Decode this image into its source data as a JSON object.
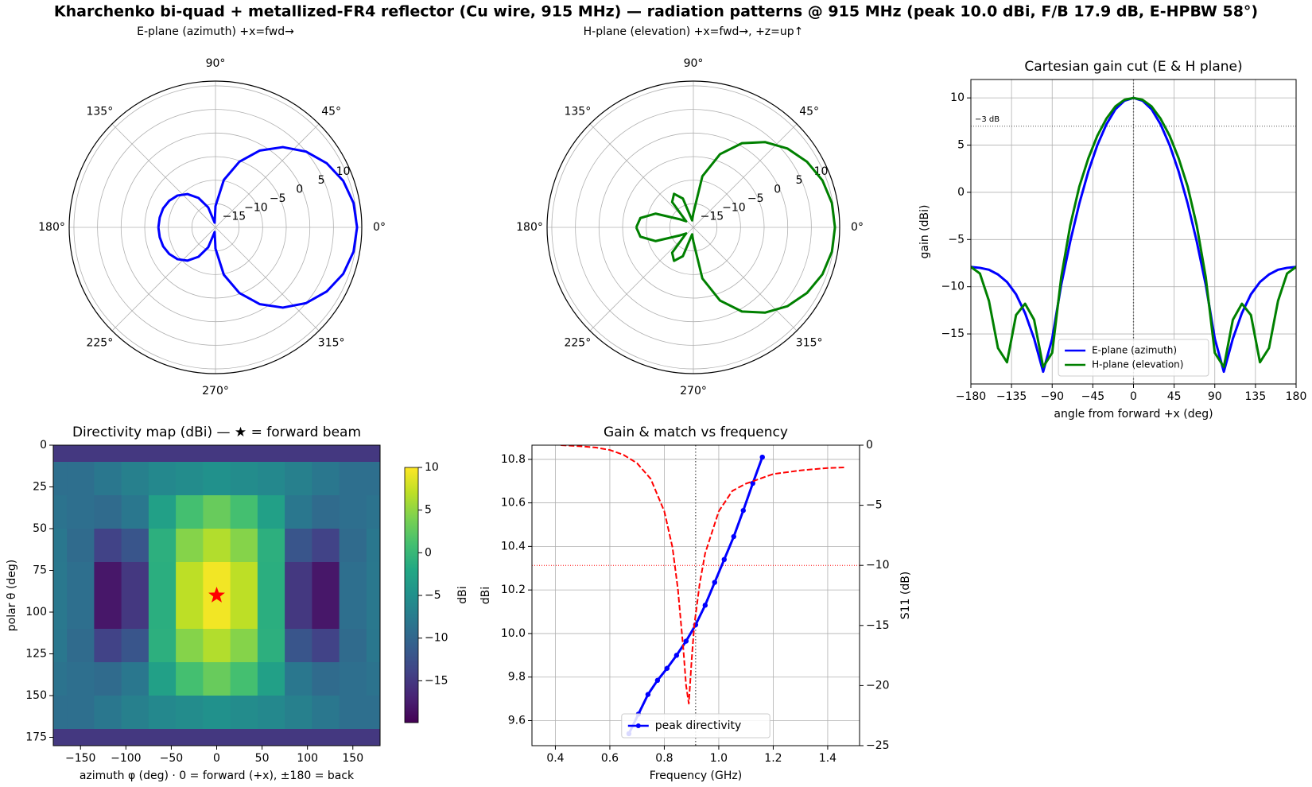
{
  "title": "Kharchenko bi-quad + metallized-FR4 reflector (Cu wire, 915 MHz)  —  radiation patterns @ 915 MHz  (peak 10.0 dBi, F/B 17.9 dB, E-HPBW 58°)",
  "chart_data": [
    {
      "type": "polar",
      "title": "E-plane (azimuth)  +x=fwd→",
      "theta": [
        -180,
        -170,
        -160,
        -150,
        -140,
        -130,
        -120,
        -110,
        -100,
        -90,
        -80,
        -70,
        -60,
        -50,
        -40,
        -30,
        -20,
        -10,
        0,
        10,
        20,
        30,
        40,
        50,
        60,
        70,
        80,
        90,
        100,
        110,
        120,
        130,
        140,
        150,
        160,
        170,
        180
      ],
      "rlim": [
        -20,
        11
      ],
      "rticks": [
        {
          "value": -15,
          "label": "−15"
        },
        {
          "value": -10,
          "label": "−10"
        },
        {
          "value": -5,
          "label": "−5"
        },
        0,
        5,
        10
      ],
      "thetaticks": [
        {
          "value": 0,
          "label": "0°"
        },
        {
          "value": 45,
          "label": "45°"
        },
        {
          "value": 90,
          "label": "90°"
        },
        {
          "value": 135,
          "label": "135°"
        },
        {
          "value": 180,
          "label": "180°"
        },
        {
          "value": 225,
          "label": "225°"
        },
        {
          "value": 270,
          "label": "270°"
        },
        {
          "value": 315,
          "label": "315°"
        }
      ],
      "series": [
        {
          "color": "#0000ff",
          "values": [
            -7.9,
            -8.0,
            -8.2,
            -8.7,
            -9.5,
            -10.8,
            -12.8,
            -15.5,
            -19,
            -15.5,
            -9.8,
            -5.2,
            -1.2,
            2.2,
            5.0,
            7.2,
            8.8,
            9.7,
            10,
            9.7,
            8.8,
            7.2,
            5.0,
            2.2,
            -1.2,
            -5.2,
            -9.8,
            -15.5,
            -19,
            -15.5,
            -12.8,
            -10.8,
            -9.5,
            -8.7,
            -8.2,
            -8.0,
            -7.9
          ]
        }
      ]
    },
    {
      "type": "polar",
      "title": "H-plane (elevation)  +x=fwd→, +z=up↑",
      "theta": [
        -180,
        -170,
        -160,
        -150,
        -140,
        -130,
        -120,
        -110,
        -100,
        -90,
        -80,
        -70,
        -60,
        -50,
        -40,
        -30,
        -20,
        -10,
        0,
        10,
        20,
        30,
        40,
        50,
        60,
        70,
        80,
        90,
        100,
        110,
        120,
        130,
        140,
        150,
        160,
        170,
        180
      ],
      "rlim": [
        -20,
        11
      ],
      "rticks": [
        {
          "value": -15,
          "label": "−15"
        },
        {
          "value": -10,
          "label": "−10"
        },
        {
          "value": -5,
          "label": "−5"
        },
        0,
        5,
        10
      ],
      "thetaticks": [
        {
          "value": 0,
          "label": "0°"
        },
        {
          "value": 45,
          "label": "45°"
        },
        {
          "value": 90,
          "label": "90°"
        },
        {
          "value": 135,
          "label": "135°"
        },
        {
          "value": 180,
          "label": "180°"
        },
        {
          "value": 225,
          "label": "225°"
        },
        {
          "value": 270,
          "label": "270°"
        },
        {
          "value": 315,
          "label": "315°"
        }
      ],
      "series": [
        {
          "color": "#008000",
          "values": [
            -7.9,
            -8.6,
            -11.5,
            -16.5,
            -18,
            -13,
            -11.8,
            -13.5,
            -18.5,
            -17,
            -9,
            -3.5,
            0.6,
            3.6,
            6.0,
            7.8,
            9.1,
            9.8,
            10,
            9.8,
            9.1,
            7.8,
            6.0,
            3.6,
            0.6,
            -3.5,
            -9,
            -17,
            -18.5,
            -13.5,
            -11.8,
            -13,
            -18,
            -16.5,
            -11.5,
            -8.6,
            -7.9
          ]
        }
      ]
    },
    {
      "type": "line",
      "title": "Cartesian gain cut (E & H plane)",
      "xlabel": "angle from forward +x (deg)",
      "ylabel": "gain (dBi)",
      "x": [
        -180,
        -170,
        -160,
        -150,
        -140,
        -130,
        -120,
        -110,
        -100,
        -90,
        -80,
        -70,
        -60,
        -50,
        -40,
        -30,
        -20,
        -10,
        0,
        10,
        20,
        30,
        40,
        50,
        60,
        70,
        80,
        90,
        100,
        110,
        120,
        130,
        140,
        150,
        160,
        170,
        180
      ],
      "xlim": [
        -180,
        180
      ],
      "ylim": [
        -20.3,
        11.95
      ],
      "xticks": [
        {
          "value": -180,
          "label": "−180"
        },
        {
          "value": -135,
          "label": "−135"
        },
        {
          "value": -90,
          "label": "−90"
        },
        {
          "value": -45,
          "label": "−45"
        },
        0,
        45,
        90,
        135,
        180
      ],
      "yticks": [
        {
          "value": -15,
          "label": "−15"
        },
        {
          "value": -10,
          "label": "−10"
        },
        {
          "value": -5,
          "label": "−5"
        },
        0,
        5,
        10
      ],
      "grid": true,
      "legend": "lower center",
      "series": [
        {
          "name": "E-plane (azimuth)",
          "color": "#0000ff",
          "values": [
            -7.9,
            -8.0,
            -8.2,
            -8.7,
            -9.5,
            -10.8,
            -12.8,
            -15.5,
            -19,
            -15.5,
            -9.8,
            -5.2,
            -1.2,
            2.2,
            5.0,
            7.2,
            8.8,
            9.7,
            10,
            9.7,
            8.8,
            7.2,
            5.0,
            2.2,
            -1.2,
            -5.2,
            -9.8,
            -15.5,
            -19,
            -15.5,
            -12.8,
            -10.8,
            -9.5,
            -8.7,
            -8.2,
            -8.0,
            -7.9
          ]
        },
        {
          "name": "H-plane (elevation)",
          "color": "#008000",
          "values": [
            -7.9,
            -8.6,
            -11.5,
            -16.5,
            -18,
            -13,
            -11.8,
            -13.5,
            -18.5,
            -17,
            -9,
            -3.5,
            0.6,
            3.6,
            6.0,
            7.8,
            9.1,
            9.8,
            10,
            9.8,
            9.1,
            7.8,
            6.0,
            3.6,
            0.6,
            -3.5,
            -9,
            -17,
            -18.5,
            -13.5,
            -11.8,
            -13,
            -18,
            -16.5,
            -11.5,
            -8.6,
            -7.9
          ]
        }
      ],
      "reference_lines": [
        {
          "axis": "y",
          "value": 7,
          "label": "−3 dB",
          "color": "#555555"
        },
        {
          "axis": "x",
          "value": 0,
          "color": "#555555"
        }
      ]
    },
    {
      "type": "heatmap",
      "title": "Directivity map (dBi) — ★ = forward beam",
      "xlabel": "azimuth φ (deg)  ·  0 = forward (+x), ±180 = back",
      "ylabel": "polar θ (deg)",
      "x": [
        -180,
        -150,
        -120,
        -90,
        -60,
        -30,
        0,
        30,
        60,
        90,
        120,
        150,
        180
      ],
      "y": [
        0,
        20,
        40,
        60,
        80,
        100,
        120,
        140,
        160,
        180
      ],
      "values": [
        [
          -15,
          -15,
          -15,
          -15,
          -15,
          -15,
          -15,
          -15,
          -15,
          -15,
          -15,
          -15,
          -15
        ],
        [
          -9,
          -9,
          -8,
          -7,
          -6,
          -5.5,
          -5,
          -5.5,
          -6,
          -7,
          -8,
          -9,
          -9
        ],
        [
          -8.5,
          -9,
          -9.5,
          -8,
          -3,
          1,
          3,
          1,
          -3,
          -8,
          -9.5,
          -9,
          -8.5
        ],
        [
          -8,
          -9.5,
          -14,
          -12,
          -1,
          4.5,
          6.5,
          4.5,
          -1,
          -12,
          -14,
          -9.5,
          -8
        ],
        [
          -7.9,
          -9,
          -18,
          -15,
          -1.2,
          7,
          9.5,
          7,
          -1.2,
          -15,
          -18,
          -9,
          -7.9
        ],
        [
          -7.9,
          -9,
          -18,
          -15,
          -1.2,
          7,
          9.5,
          7,
          -1.2,
          -15,
          -18,
          -9,
          -7.9
        ],
        [
          -8,
          -9.5,
          -14,
          -12,
          -1,
          4.5,
          6.5,
          4.5,
          -1,
          -12,
          -14,
          -9.5,
          -8
        ],
        [
          -8.5,
          -9,
          -9.5,
          -8,
          -3,
          1,
          3,
          1,
          -3,
          -8,
          -9.5,
          -9,
          -8.5
        ],
        [
          -9,
          -9,
          -8,
          -7,
          -6,
          -5.5,
          -5,
          -5.5,
          -6,
          -7,
          -8,
          -9,
          -9
        ],
        [
          -15,
          -15,
          -15,
          -15,
          -15,
          -15,
          -15,
          -15,
          -15,
          -15,
          -15,
          -15,
          -15
        ]
      ],
      "colormap": "viridis",
      "clim": [
        -19.9,
        10
      ],
      "colorbar_label": "dBi",
      "colorbar_ticks": [
        {
          "value": -15,
          "label": "−15"
        },
        {
          "value": -10,
          "label": "−10"
        },
        {
          "value": -5,
          "label": "−5"
        },
        0,
        5,
        10
      ],
      "xlim": [
        -180,
        180
      ],
      "ylim": [
        180,
        0
      ],
      "xticks": [
        {
          "value": -150,
          "label": "−150"
        },
        {
          "value": -100,
          "label": "−100"
        },
        {
          "value": -50,
          "label": "−50"
        },
        0,
        50,
        100,
        150
      ],
      "yticks": [
        0,
        25,
        50,
        75,
        100,
        125,
        150,
        175
      ],
      "marker": {
        "x": 0,
        "y": 90,
        "color": "#ff0000"
      }
    },
    {
      "type": "line",
      "title": "Gain & match vs frequency",
      "xlabel": "Frequency (GHz)",
      "ylabel": "dBi",
      "y2label": "S11 (dB)",
      "xlim": [
        0.314,
        1.517
      ],
      "ylim": [
        9.485,
        10.865
      ],
      "y2lim": [
        -25,
        0
      ],
      "xticks": [
        0.4,
        0.6,
        0.8,
        {
          "value": 1,
          "label": "1.0"
        },
        1.2,
        1.4
      ],
      "yticks": [
        9.6,
        9.8,
        {
          "value": 10,
          "label": "10.0"
        },
        10.2,
        10.4,
        10.6,
        10.8
      ],
      "y2ticks": [
        0,
        {
          "value": -5,
          "label": "−5"
        },
        {
          "value": -10,
          "label": "−10"
        },
        {
          "value": -15,
          "label": "−15"
        },
        {
          "value": -20,
          "label": "−20"
        },
        {
          "value": -25,
          "label": "−25"
        }
      ],
      "grid": true,
      "legend": "lower center",
      "series": [
        {
          "name": "peak directivity",
          "color": "#0000ff",
          "marker": "o",
          "x": [
            0.67,
            0.705,
            0.74,
            0.775,
            0.81,
            0.845,
            0.88,
            0.915,
            0.95,
            0.985,
            1.02,
            1.055,
            1.09,
            1.125,
            1.16
          ],
          "values": [
            9.54,
            9.63,
            9.72,
            9.785,
            9.84,
            9.9,
            9.965,
            10.04,
            10.13,
            10.235,
            10.34,
            10.445,
            10.565,
            10.69,
            10.81
          ]
        },
        {
          "color": "#ff0000",
          "dash": "dashed",
          "axis": "y2",
          "x": [
            0.42,
            0.5,
            0.55,
            0.6,
            0.65,
            0.7,
            0.75,
            0.8,
            0.83,
            0.85,
            0.87,
            0.88,
            0.89,
            0.9,
            0.91,
            0.93,
            0.95,
            1.0,
            1.05,
            1.1,
            1.2,
            1.3,
            1.4,
            1.46
          ],
          "values": [
            0,
            -0.1,
            -0.2,
            -0.4,
            -0.8,
            -1.5,
            -2.8,
            -5.5,
            -8.5,
            -12,
            -17,
            -20,
            -21.5,
            -18,
            -15,
            -11.5,
            -9,
            -5.5,
            -3.8,
            -3.2,
            -2.4,
            -2.1,
            -1.9,
            -1.85
          ]
        }
      ],
      "reference_lines": [
        {
          "axis": "x",
          "value": 0.915,
          "color": "#555555"
        },
        {
          "axis": "y2",
          "value": -10,
          "color": "#ff0000"
        }
      ]
    }
  ]
}
